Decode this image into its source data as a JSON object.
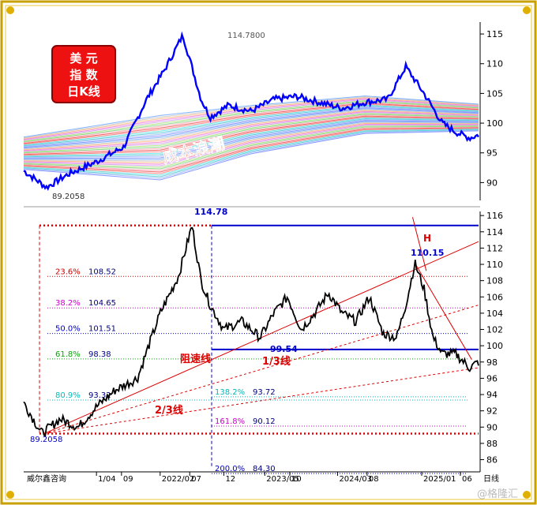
{
  "badge": {
    "line1": "美 元",
    "line2": "指 数",
    "line3": "日K线"
  },
  "watermark": "@格隆汇",
  "source": "威尔鑫咨询",
  "colors": {
    "price": "#0000ff",
    "blue_line": "#0000cc",
    "red": "#dd0000",
    "green": "#00aa00",
    "magenta": "#cc00cc",
    "cyan": "#00bbbb",
    "gold": "#c8a000"
  },
  "chart_data": [
    {
      "type": "line",
      "title": "",
      "panel": "upper",
      "ylim": [
        87,
        117
      ],
      "y_ticks": [
        90,
        95,
        100,
        105,
        110,
        115
      ],
      "annotations": {
        "high_label": "114.7800",
        "low_label": "89.2058",
        "band_label": "成本浪潮"
      },
      "series": [
        {
          "x": [
            0,
            0.05,
            0.1,
            0.16,
            0.22,
            0.27,
            0.31,
            0.35,
            0.39,
            0.41,
            0.45,
            0.5,
            0.55,
            0.6,
            0.65,
            0.7,
            0.75,
            0.8,
            0.84,
            0.88,
            0.92,
            0.95,
            0.98,
            1.0
          ],
          "y": [
            92,
            89.2,
            91.5,
            93.5,
            96,
            104,
            109,
            114.8,
            104,
            101,
            103,
            102,
            104,
            104.5,
            103.5,
            102.5,
            103.5,
            104,
            109.5,
            105,
            100,
            98.5,
            97.5,
            98
          ]
        }
      ]
    },
    {
      "type": "line",
      "title": "",
      "panel": "lower",
      "ylim": [
        84.5,
        116.5
      ],
      "y_ticks": [
        86,
        88,
        90,
        92,
        94,
        96,
        98,
        100,
        102,
        104,
        106,
        108,
        110,
        112,
        114,
        116
      ],
      "x_ticks": [
        "1/04",
        "09",
        "2022/02",
        "07",
        "12",
        "2023/05",
        "10",
        "2024/03",
        "08",
        "2025/01",
        "06"
      ],
      "x_axis_label": "日线",
      "high": {
        "value": "114.78",
        "y": 114.78
      },
      "low": {
        "value": "89.2058",
        "y": 89.2
      },
      "point_labels": [
        {
          "label": "99.54",
          "y": 99.54
        },
        {
          "label": "110.15",
          "y": 110.15
        },
        {
          "label": "H",
          "y": 112.8
        }
      ],
      "fib_levels": [
        {
          "pct": "23.6%",
          "value": "108.52",
          "y": 108.52,
          "color": "#cc0000"
        },
        {
          "pct": "38.2%",
          "value": "104.65",
          "y": 104.65,
          "color": "#cc00cc"
        },
        {
          "pct": "50.0%",
          "value": "101.51",
          "y": 101.51,
          "color": "#0000cc"
        },
        {
          "pct": "61.8%",
          "value": "98.38",
          "y": 98.38,
          "color": "#00aa00"
        },
        {
          "pct": "80.9%",
          "value": "93.32",
          "y": 93.32,
          "color": "#00bbbb"
        },
        {
          "pct": "138.2%",
          "value": "93.72",
          "y": 93.72,
          "color": "#00bbbb"
        },
        {
          "pct": "161.8%",
          "value": "90.12",
          "y": 90.12,
          "color": "#cc00cc"
        },
        {
          "pct": "200.0%",
          "value": "84.30",
          "y": 84.3,
          "color": "#0000cc"
        }
      ],
      "trend_labels": {
        "resistance": "阻速线",
        "one_third": "1/3线",
        "two_thirds": "2/3线"
      },
      "series": [
        {
          "x": [
            0,
            0.04,
            0.08,
            0.12,
            0.16,
            0.2,
            0.25,
            0.3,
            0.34,
            0.37,
            0.39,
            0.41,
            0.44,
            0.48,
            0.52,
            0.55,
            0.58,
            0.61,
            0.64,
            0.67,
            0.7,
            0.73,
            0.76,
            0.79,
            0.82,
            0.84,
            0.86,
            0.88,
            0.9,
            0.92,
            0.95,
            0.98,
            1.0
          ],
          "y": [
            93,
            89.2,
            91,
            90,
            92.5,
            94.5,
            96,
            104,
            108.5,
            114.78,
            108,
            105,
            102,
            103,
            101,
            104,
            106,
            102,
            104,
            106.5,
            104,
            103,
            106,
            101.5,
            101,
            105,
            110.15,
            107,
            101,
            99,
            99,
            97.3,
            98
          ]
        }
      ]
    }
  ]
}
